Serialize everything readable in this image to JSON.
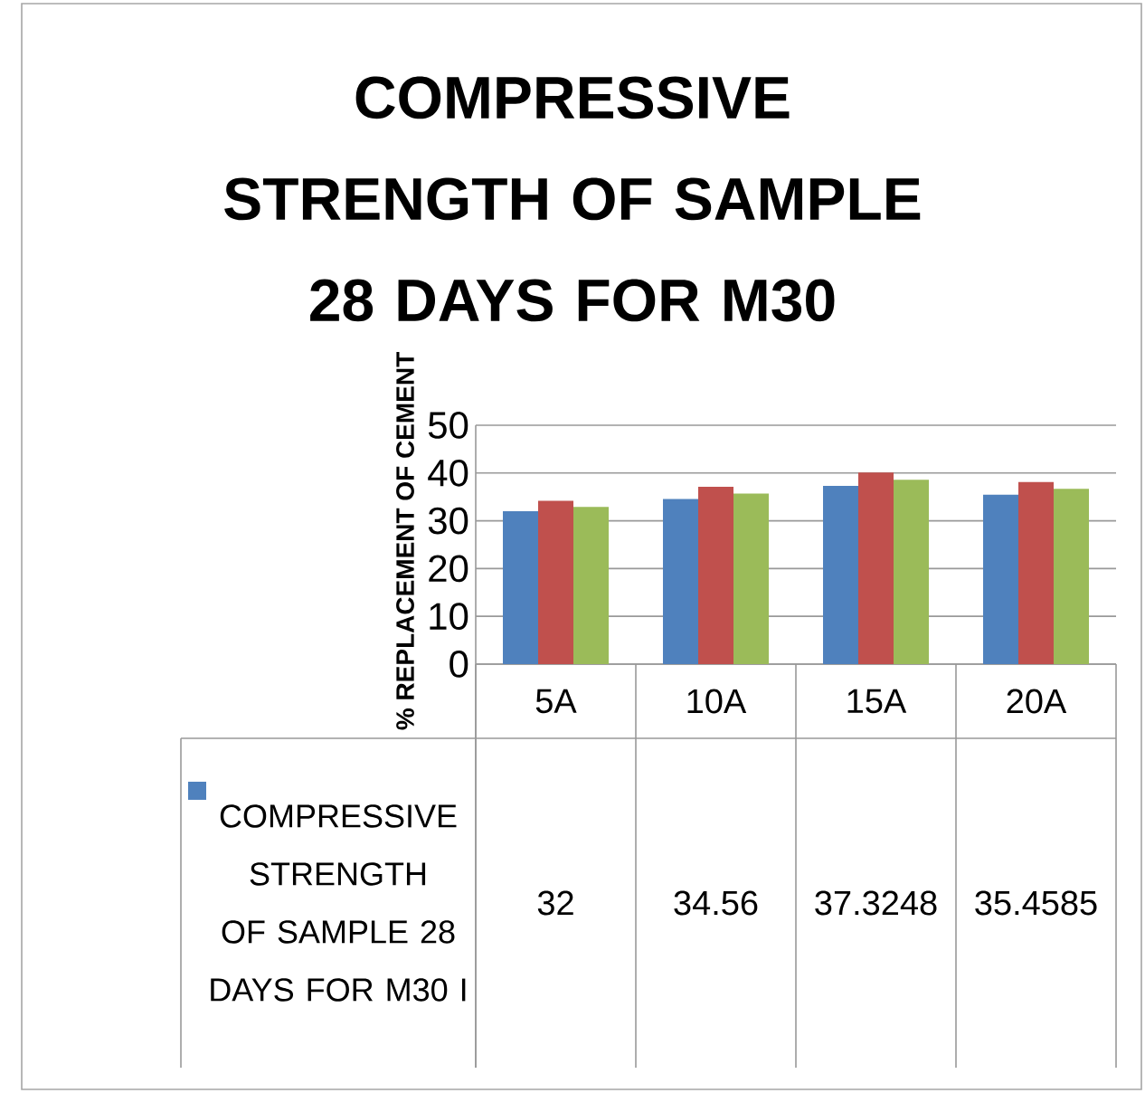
{
  "chart_data": {
    "type": "bar",
    "title": "COMPRESSIVE STRENGTH OF SAMPLE 28 DAYS FOR  M30",
    "ylabel": "% REPLACEMENT OF CEMENT",
    "categories": [
      "5A",
      "10A",
      "15A",
      "20A"
    ],
    "series": [
      {
        "name": "COMPRESSIVE STRENGTH OF SAMPLE 28 DAYS FOR  M30 I",
        "color": "#4f81bd",
        "values": [
          32,
          34.56,
          37.3248,
          35.4585
        ],
        "value_labels": [
          "32",
          "34.56",
          "37.3248",
          "35.4585"
        ]
      },
      {
        "color": "#c0504d",
        "values": [
          34.2,
          37.1,
          40.1,
          38.1
        ]
      },
      {
        "color": "#9bbb59",
        "values": [
          32.9,
          35.7,
          38.6,
          36.7
        ]
      }
    ],
    "ylim": [
      0,
      50
    ],
    "yticks": [
      0,
      10,
      20,
      30,
      40,
      50
    ],
    "grid": "y"
  }
}
